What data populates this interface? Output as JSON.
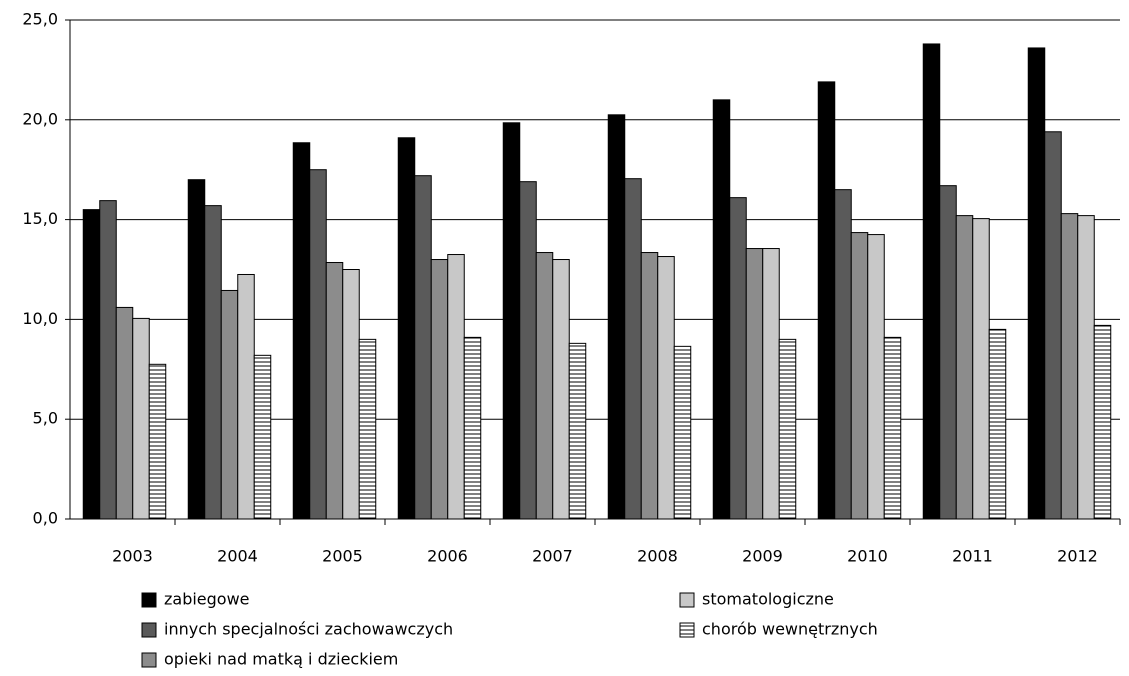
{
  "chart_data": {
    "type": "bar",
    "categories": [
      "2003",
      "2004",
      "2005",
      "2006",
      "2007",
      "2008",
      "2009",
      "2010",
      "2011",
      "2012"
    ],
    "series": [
      {
        "name": "zabiegowe",
        "color": "#000000",
        "values": [
          15.5,
          17.0,
          18.85,
          19.1,
          19.85,
          20.25,
          21.0,
          21.9,
          23.8,
          23.6
        ]
      },
      {
        "name": "innych specjalności zachowawczych",
        "color": "#5a5a5a",
        "values": [
          15.95,
          15.7,
          17.5,
          17.2,
          16.9,
          17.05,
          16.1,
          16.5,
          16.7,
          19.4
        ]
      },
      {
        "name": "opieki nad matką i dzieckiem",
        "color": "#8c8c8c",
        "values": [
          10.6,
          11.45,
          12.85,
          13.0,
          13.35,
          13.35,
          13.55,
          14.35,
          15.2,
          15.3
        ]
      },
      {
        "name": "stomatologiczne",
        "color": "#c8c8c8",
        "values": [
          10.05,
          12.25,
          12.5,
          13.25,
          13.0,
          13.15,
          13.55,
          14.25,
          15.05,
          15.2
        ]
      },
      {
        "name": "chorób wewnętrznych",
        "color": "#ffffff",
        "pattern": "horizontal-lines",
        "values": [
          7.75,
          8.2,
          9.0,
          9.1,
          8.8,
          8.65,
          9.0,
          9.1,
          9.5,
          9.7
        ]
      }
    ],
    "ylim": [
      0,
      25
    ],
    "yticks": [
      {
        "value": 0,
        "label": "0,0"
      },
      {
        "value": 5,
        "label": "5,0"
      },
      {
        "value": 10,
        "label": "10,0"
      },
      {
        "value": 15,
        "label": "15,0"
      },
      {
        "value": 20,
        "label": "20,0"
      },
      {
        "value": 25,
        "label": "25,0"
      }
    ],
    "grid": true
  }
}
